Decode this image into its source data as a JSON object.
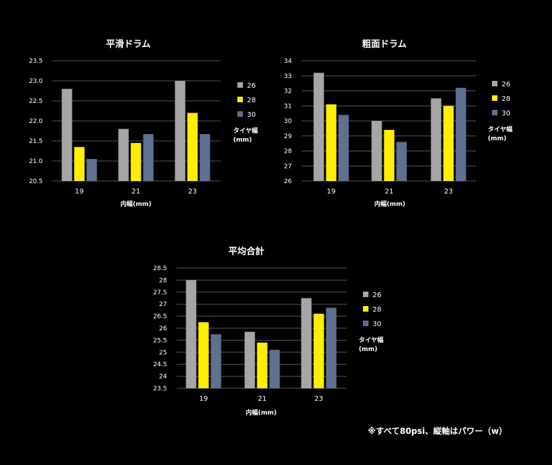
{
  "note": "※すべて80psi、縦軸はパワー（w）",
  "colors": {
    "s26": "#a6a6a6",
    "s28": "#ffee00",
    "s30": "#5f7090"
  },
  "chart_data": [
    {
      "type": "bar",
      "title": "平滑ドラム",
      "xlabel": "内幅(mm)",
      "ylabel": "",
      "categories": [
        "19",
        "21",
        "23"
      ],
      "ylim": [
        20.5,
        23.5
      ],
      "yticks": [
        "23.5",
        "23.0",
        "22.5",
        "22.0",
        "21.5",
        "21.0",
        "20.5"
      ],
      "ytick_values": [
        23.5,
        23.0,
        22.5,
        22.0,
        21.5,
        21.0,
        20.5
      ],
      "legend_title": [
        "タイヤ幅",
        "(mm)"
      ],
      "legend_position": "right",
      "series": [
        {
          "name": "26",
          "values": [
            22.8,
            21.8,
            23.0
          ]
        },
        {
          "name": "28",
          "values": [
            21.35,
            21.45,
            22.2
          ]
        },
        {
          "name": "30",
          "values": [
            21.05,
            21.67,
            21.67
          ]
        }
      ]
    },
    {
      "type": "bar",
      "title": "粗面ドラム",
      "xlabel": "内幅(mm)",
      "ylabel": "",
      "categories": [
        "19",
        "21",
        "23"
      ],
      "ylim": [
        26,
        34
      ],
      "yticks": [
        "34",
        "33",
        "32",
        "31",
        "30",
        "29",
        "28",
        "27",
        "26"
      ],
      "ytick_values": [
        34,
        33,
        32,
        31,
        30,
        29,
        28,
        27,
        26
      ],
      "legend_title": [
        "タイヤ幅",
        "(mm)"
      ],
      "legend_position": "right",
      "series": [
        {
          "name": "26",
          "values": [
            33.2,
            30.0,
            31.5
          ]
        },
        {
          "name": "28",
          "values": [
            31.1,
            29.4,
            31.0
          ]
        },
        {
          "name": "30",
          "values": [
            30.4,
            28.6,
            32.2
          ]
        }
      ]
    },
    {
      "type": "bar",
      "title": "平均合計",
      "xlabel": "内幅(mm)",
      "ylabel": "",
      "categories": [
        "19",
        "21",
        "23"
      ],
      "ylim": [
        23.5,
        28.5
      ],
      "yticks": [
        "28.5",
        "28",
        "27.5",
        "27",
        "26.5",
        "26",
        "25.5",
        "25",
        "24.5",
        "24",
        "23.5"
      ],
      "ytick_values": [
        28.5,
        28,
        27.5,
        27,
        26.5,
        26,
        25.5,
        25,
        24.5,
        24,
        23.5
      ],
      "legend_title": [
        "タイヤ幅",
        "(mm)"
      ],
      "legend_position": "right",
      "series": [
        {
          "name": "26",
          "values": [
            28.0,
            25.85,
            27.25
          ]
        },
        {
          "name": "28",
          "values": [
            26.25,
            25.4,
            26.6
          ]
        },
        {
          "name": "30",
          "values": [
            25.75,
            25.1,
            26.85
          ]
        }
      ]
    }
  ]
}
